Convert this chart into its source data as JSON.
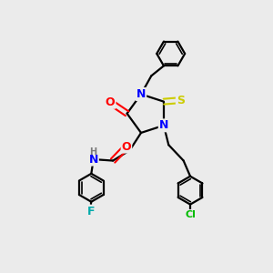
{
  "bg_color": "#ebebeb",
  "atom_colors": {
    "N": "#0000ff",
    "O": "#ff0000",
    "S": "#cccc00",
    "F": "#00aaaa",
    "Cl": "#00bb00",
    "C": "#000000",
    "H": "#7a7a7a"
  }
}
